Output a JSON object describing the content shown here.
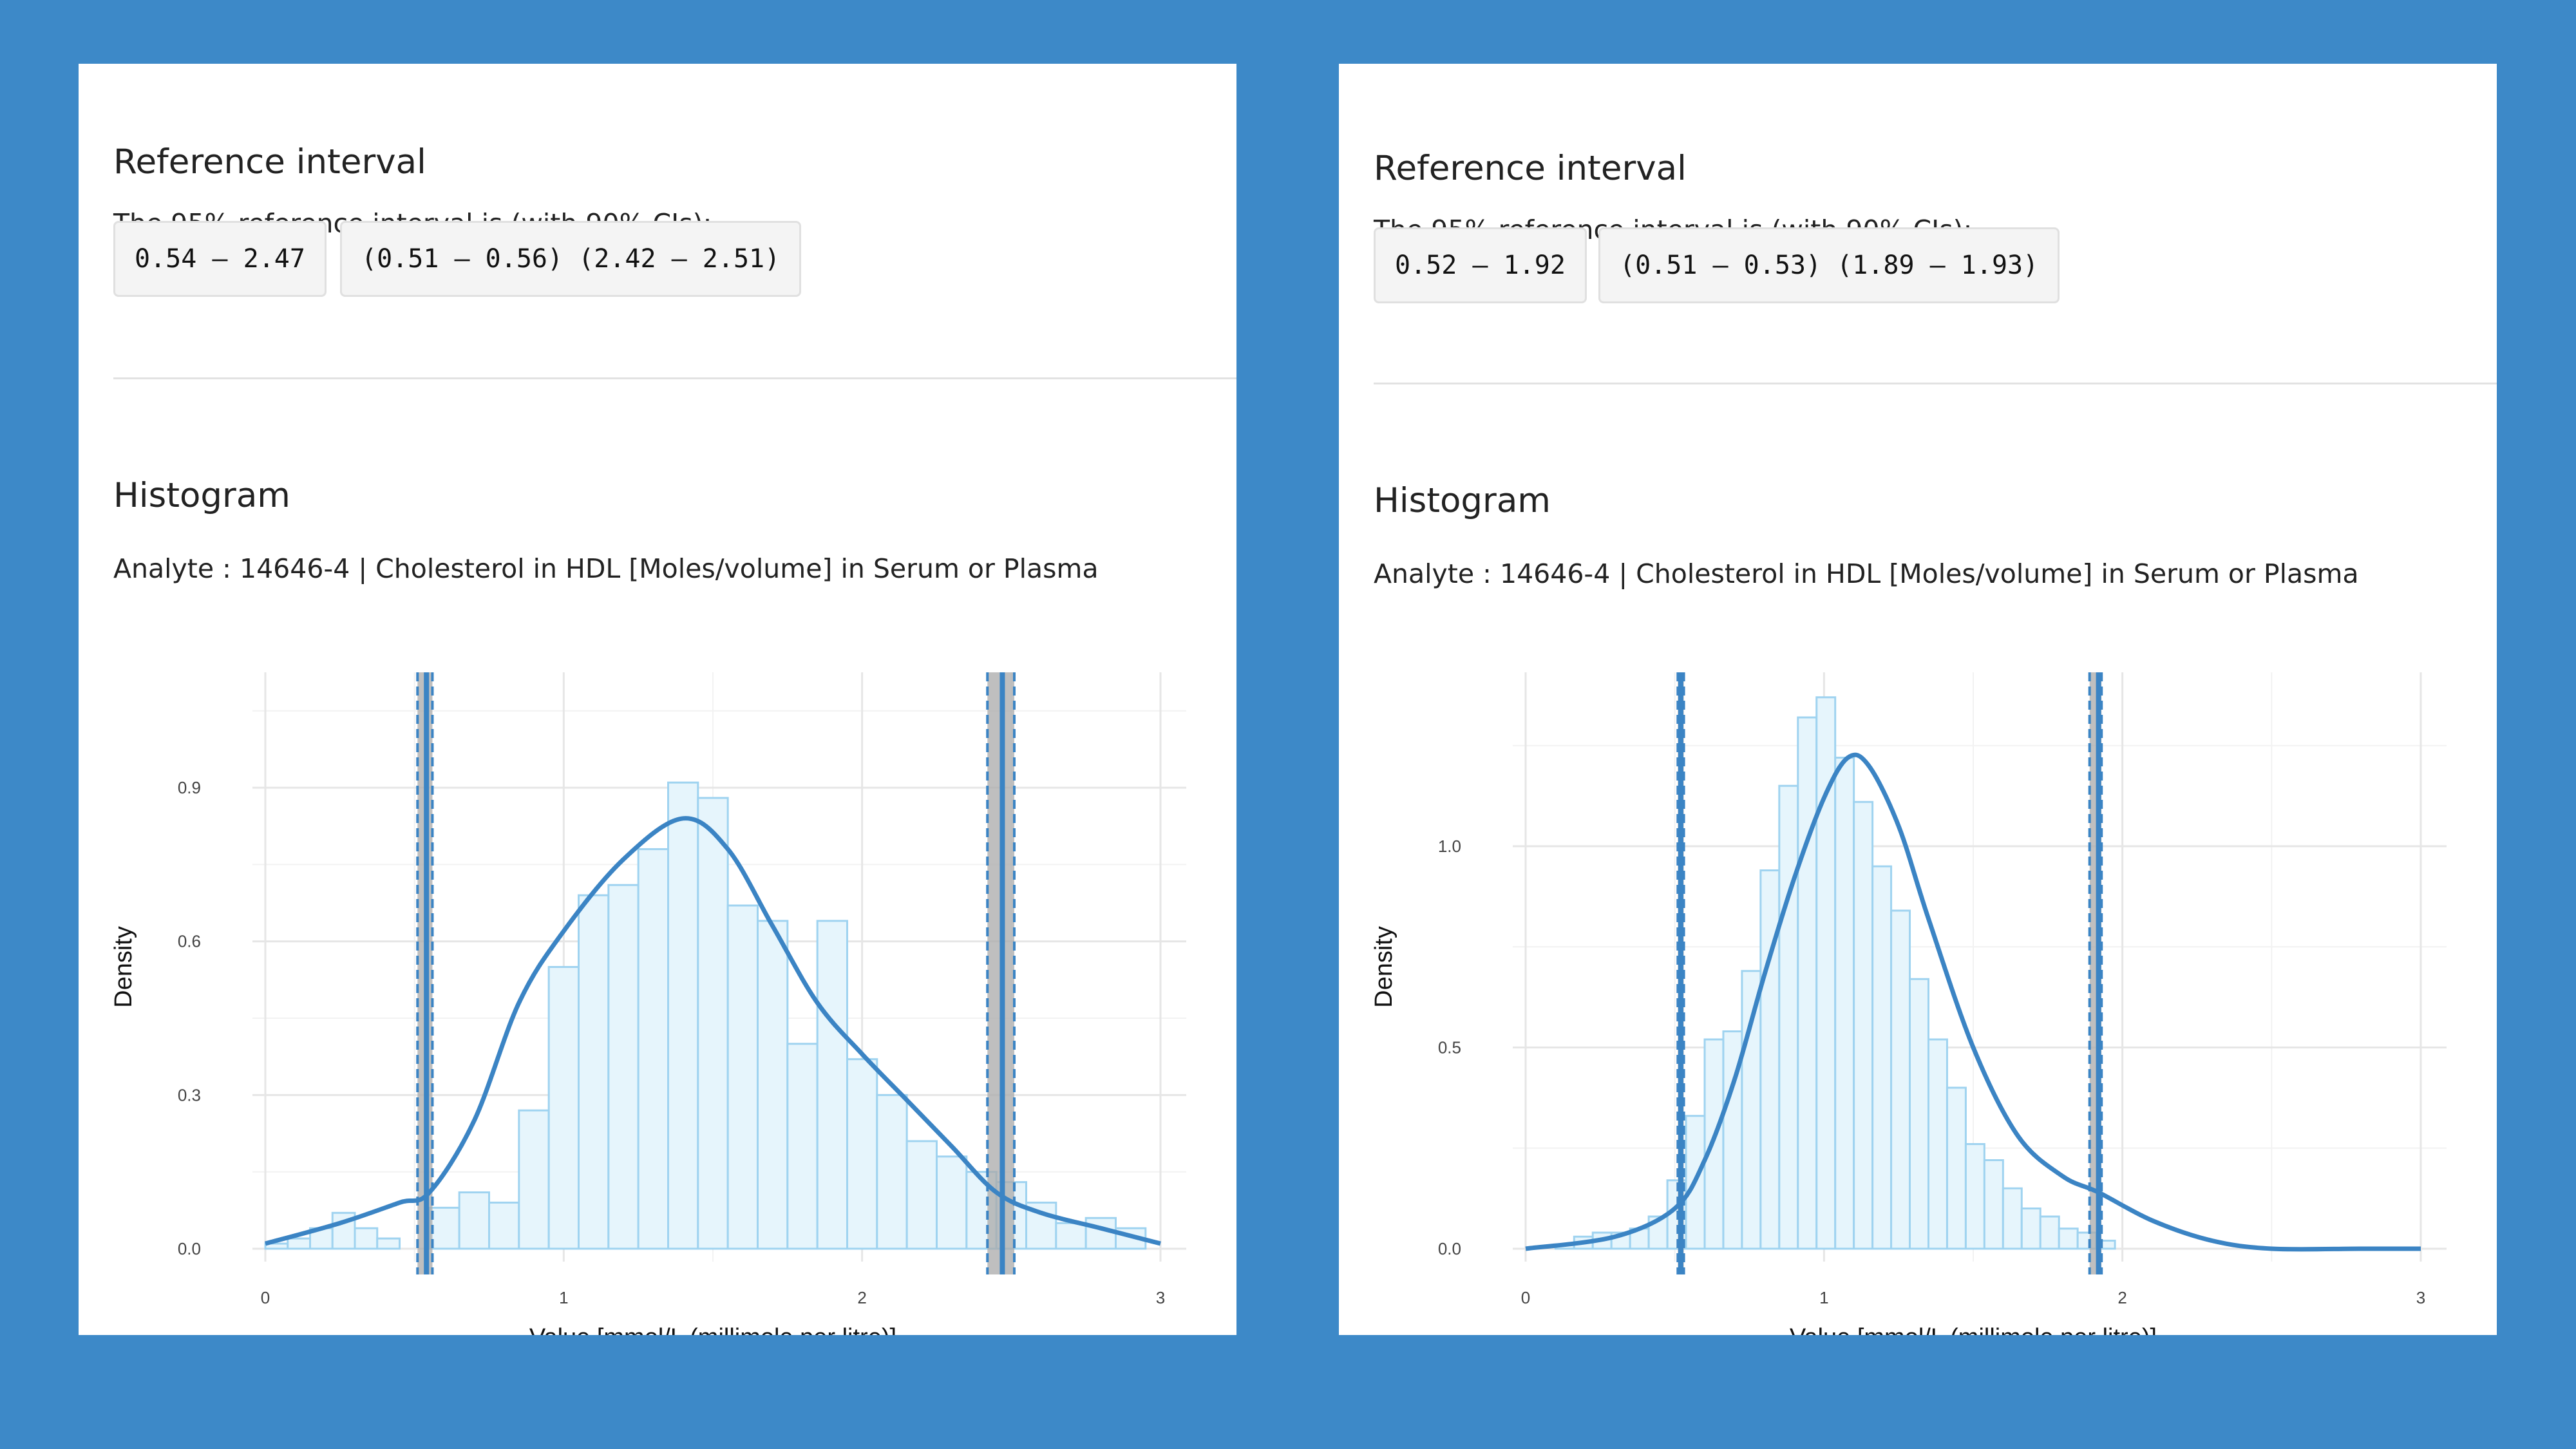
{
  "panels": [
    {
      "ri_title": "Reference interval",
      "ri_text": "The 95% reference interval is (with 90% CIs):",
      "ri_value": "0.54 – 2.47",
      "ci_value": "(0.51 – 0.56) (2.42 – 2.51)",
      "hist_title": "Histogram",
      "analyte": "Analyte : 14646-4 | Cholesterol in HDL [Moles/volume] in Serum or Plasma"
    },
    {
      "ri_title": "Reference interval",
      "ri_text": "The 95% reference interval is (with 90% CIs):",
      "ri_value": "0.52 – 1.92",
      "ci_value": "(0.51 – 0.53) (1.89 – 1.93)",
      "hist_title": "Histogram",
      "analyte": "Analyte : 14646-4 | Cholesterol in HDL [Moles/volume] in Serum or Plasma"
    }
  ],
  "colors": {
    "background": "#3d89c8",
    "density_line": "#3b84c4",
    "bar_fill": "#e6f5fc",
    "bar_stroke": "#9fd3f0",
    "ci_band": "#a9a9a9"
  },
  "chart_data": [
    {
      "type": "bar",
      "title": "",
      "xlabel": "Value [mmol/L (millimole per litre)]",
      "ylabel": "Density",
      "xlim": [
        0,
        3
      ],
      "ylim": [
        0,
        1.1
      ],
      "x_ticks": [
        0,
        1,
        2,
        3
      ],
      "y_ticks": [
        0.0,
        0.3,
        0.6,
        0.9
      ],
      "y_tick_labels": [
        "0.0",
        "0.3",
        "0.6",
        "0.9"
      ],
      "grid": true,
      "bin_width": 0.075,
      "bin_start": 0.0,
      "histogram_density": [
        0.01,
        0.02,
        0.04,
        0.07,
        0.04,
        0.02,
        0.08,
        0.11,
        0.09,
        0.27,
        0.55,
        0.69,
        0.71,
        0.78,
        0.91,
        0.88,
        0.67,
        0.64,
        0.4,
        0.64,
        0.37,
        0.3,
        0.21,
        0.18,
        0.15,
        0.13,
        0.09,
        0.05,
        0.06,
        0.04
      ],
      "histogram_density_x": [
        0.0375,
        0.1125,
        0.1875,
        0.2625,
        0.3375,
        0.4125,
        0.5875,
        0.6375,
        0.7125,
        0.7875,
        0.8625,
        0.9375,
        1.0125,
        1.0875,
        1.1625,
        1.2375,
        1.3125,
        1.3875,
        1.4625,
        1.5375,
        1.6125,
        1.6875,
        1.7625,
        1.8375,
        1.9125,
        1.9875,
        2.0625,
        2.1375,
        2.2125,
        2.2875
      ],
      "histogram_values_note_unused": "",
      "density_curve": {
        "x": [
          0,
          0.25,
          0.45,
          0.55,
          0.7,
          0.85,
          1.0,
          1.2,
          1.4,
          1.55,
          1.7,
          1.85,
          2.0,
          2.15,
          2.3,
          2.45,
          2.6,
          2.8,
          3.0
        ],
        "y": [
          0.01,
          0.05,
          0.09,
          0.11,
          0.25,
          0.48,
          0.62,
          0.76,
          0.84,
          0.78,
          0.63,
          0.48,
          0.38,
          0.29,
          0.2,
          0.11,
          0.07,
          0.04,
          0.01
        ]
      },
      "reference_limits": [
        0.54,
        2.47
      ],
      "ci_bands": [
        [
          0.51,
          0.56
        ],
        [
          2.42,
          2.51
        ]
      ]
    },
    {
      "type": "bar",
      "title": "",
      "xlabel": "Value [mmol/L (millimole per litre)]",
      "ylabel": "Density",
      "xlim": [
        0,
        3
      ],
      "ylim": [
        0,
        1.4
      ],
      "x_ticks": [
        0,
        1,
        2,
        3
      ],
      "y_ticks": [
        0.0,
        0.5,
        1.0
      ],
      "y_tick_labels": [
        "0.0",
        "0.5",
        "1.0"
      ],
      "grid": true,
      "bin_width": 0.0625,
      "bin_start": 0.1,
      "histogram_density": [
        0.01,
        0.03,
        0.04,
        0.04,
        0.05,
        0.08,
        0.17,
        0.33,
        0.52,
        0.54,
        0.69,
        0.94,
        1.15,
        1.32,
        1.37,
        1.22,
        1.11,
        0.95,
        0.84,
        0.67,
        0.52,
        0.4,
        0.26,
        0.22,
        0.15,
        0.1,
        0.08,
        0.05,
        0.04,
        0.02
      ],
      "density_curve": {
        "x": [
          0,
          0.3,
          0.5,
          0.6,
          0.7,
          0.8,
          0.9,
          1.0,
          1.08,
          1.15,
          1.25,
          1.35,
          1.5,
          1.65,
          1.8,
          1.92,
          2.1,
          2.3,
          2.5,
          2.8,
          3.0
        ],
        "y": [
          0.0,
          0.03,
          0.1,
          0.22,
          0.42,
          0.68,
          0.92,
          1.12,
          1.22,
          1.2,
          1.05,
          0.82,
          0.5,
          0.28,
          0.18,
          0.14,
          0.07,
          0.02,
          0.0,
          0.0,
          0.0
        ]
      },
      "reference_limits": [
        0.52,
        1.92
      ],
      "ci_bands": [
        [
          0.51,
          0.53
        ],
        [
          1.89,
          1.93
        ]
      ]
    }
  ]
}
